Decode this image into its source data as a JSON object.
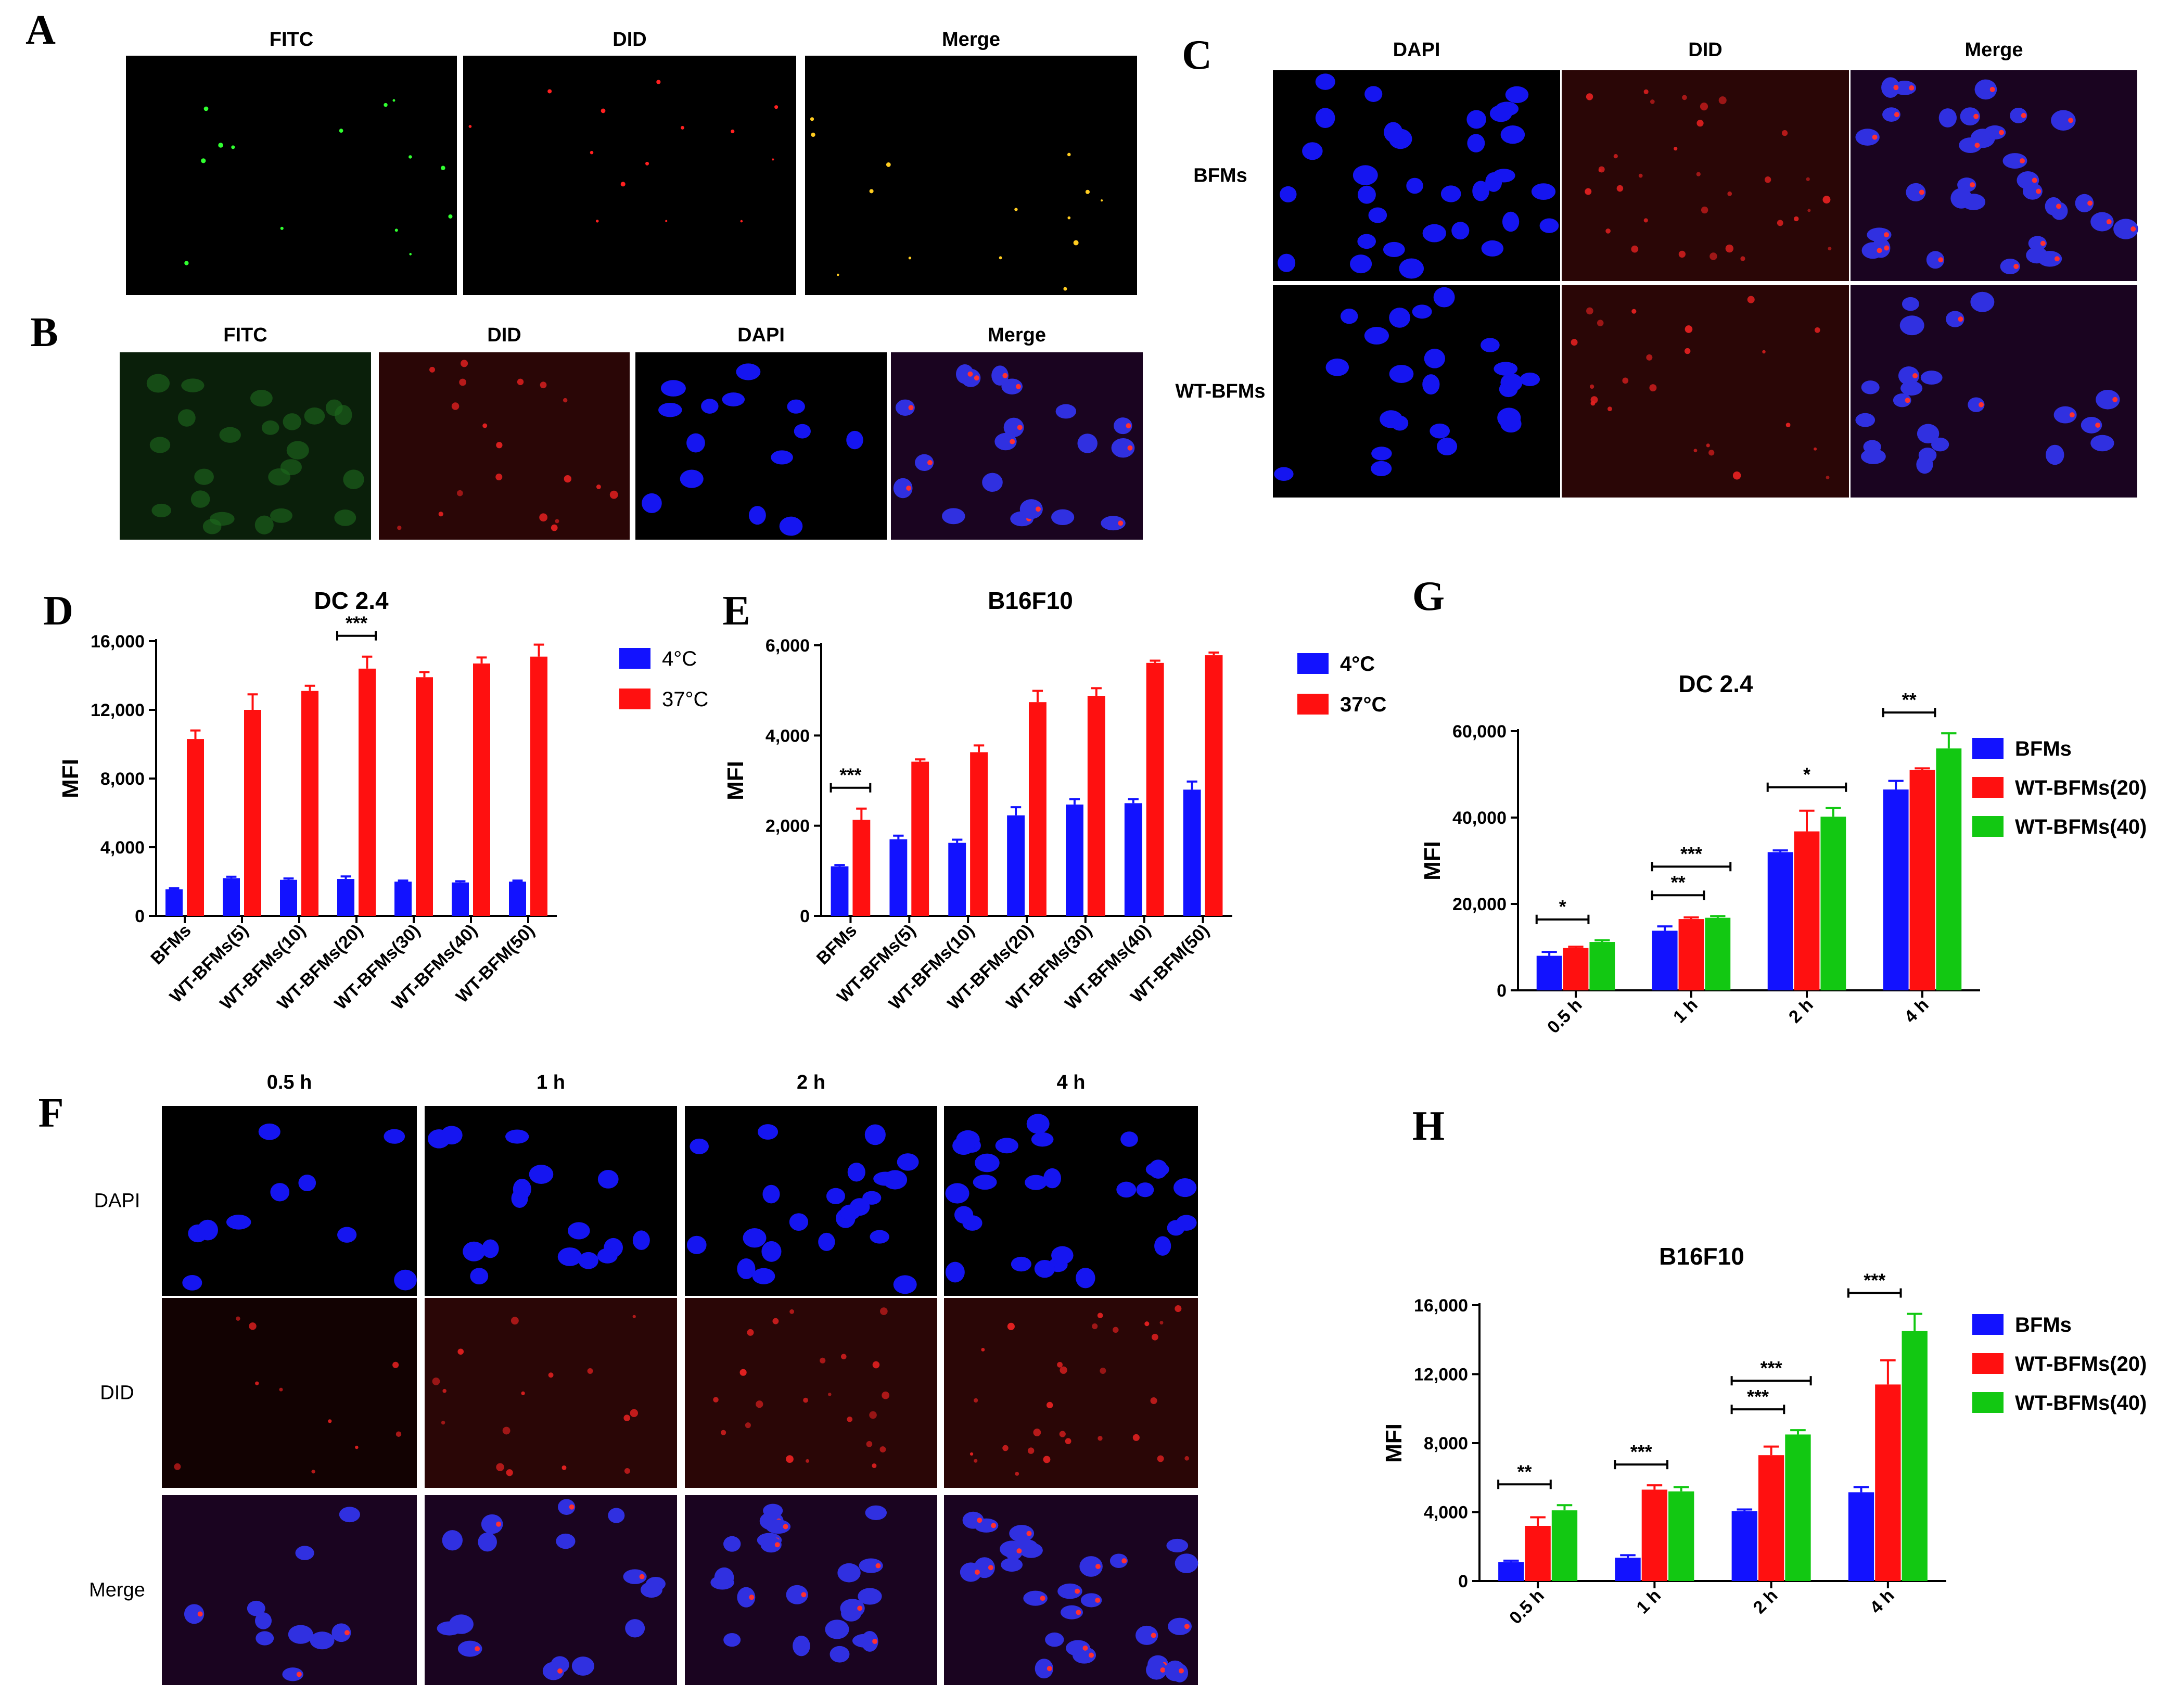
{
  "panel_letters": {
    "A": "A",
    "B": "B",
    "C": "C",
    "D": "D",
    "E": "E",
    "F": "F",
    "G": "G",
    "H": "H"
  },
  "panel_A": {
    "columns": [
      "FITC",
      "DID",
      "Merge"
    ]
  },
  "panel_B": {
    "columns": [
      "FITC",
      "DID",
      "DAPI",
      "Merge"
    ]
  },
  "panel_C": {
    "columns": [
      "DAPI",
      "DID",
      "Merge"
    ],
    "rows": [
      "BFMs",
      "WT-BFMs"
    ]
  },
  "panel_F": {
    "columns": [
      "0.5 h",
      "1 h",
      "2 h",
      "4 h"
    ],
    "rows": [
      "DAPI",
      "DID",
      "Merge"
    ]
  },
  "colors": {
    "blue": "#1212ff",
    "red": "#ff1010",
    "green": "#12c812",
    "dapi_bg": "#000000",
    "dapi_nuclei": "#1515f0",
    "did": "#d01010",
    "fitc": "#20c020"
  },
  "chart_data": [
    {
      "id": "D",
      "type": "bar",
      "title": "DC 2.4",
      "ylabel": "MFI",
      "ylim": [
        0,
        16000
      ],
      "yticks": [
        "0",
        "4,000",
        "8,000",
        "12,000",
        "16,000"
      ],
      "categories": [
        "BFMs",
        "WT-BFMs(5)",
        "WT-BFMs(10)",
        "WT-BFMs(20)",
        "WT-BFMs(30)",
        "WT-BFMs(40)",
        "WT-BFM(50)"
      ],
      "series": [
        {
          "name": "4°C",
          "values": [
            1550,
            2200,
            2100,
            2150,
            2000,
            1950,
            2000
          ],
          "errors": [
            60,
            80,
            80,
            150,
            60,
            70,
            60
          ]
        },
        {
          "name": "37°C",
          "values": [
            10300,
            12000,
            13100,
            14400,
            13900,
            14700,
            15100
          ],
          "errors": [
            500,
            900,
            300,
            700,
            300,
            350,
            700
          ]
        }
      ],
      "annotations": [
        {
          "text": "***",
          "between": "4°C vs 37°C",
          "category": "WT-BFMs(20)"
        }
      ],
      "legend": "right",
      "grid": false
    },
    {
      "id": "E",
      "type": "bar",
      "title": "B16F10",
      "ylabel": "MFI",
      "ylim": [
        0,
        6000
      ],
      "yticks": [
        "0",
        "2,000",
        "4,000",
        "6,000"
      ],
      "categories": [
        "BFMs",
        "WT-BFMs(5)",
        "WT-BFMs(10)",
        "WT-BFMs(20)",
        "WT-BFMs(30)",
        "WT-BFMs(40)",
        "WT-BFM(50)"
      ],
      "series": [
        {
          "name": "4°C",
          "values": [
            1100,
            1700,
            1620,
            2230,
            2470,
            2500,
            2800
          ],
          "errors": [
            30,
            80,
            70,
            180,
            120,
            90,
            180
          ]
        },
        {
          "name": "37°C",
          "values": [
            2130,
            3420,
            3630,
            4740,
            4880,
            5610,
            5780
          ],
          "errors": [
            250,
            50,
            150,
            250,
            170,
            50,
            60
          ]
        }
      ],
      "annotations": [
        {
          "text": "***",
          "between": "4°C vs 37°C",
          "category": "BFMs"
        }
      ],
      "legend": "right",
      "grid": false
    },
    {
      "id": "G",
      "type": "bar",
      "title": "DC 2.4",
      "ylabel": "MFI",
      "ylim": [
        0,
        60000
      ],
      "yticks": [
        "0",
        "20,000",
        "40,000",
        "60,000"
      ],
      "categories": [
        "0.5 h",
        "1 h",
        "2 h",
        "4 h"
      ],
      "series": [
        {
          "name": "BFMs",
          "values": [
            8000,
            13800,
            32000,
            46500
          ],
          "errors": [
            900,
            1000,
            400,
            2000
          ]
        },
        {
          "name": "WT-BFMs(20)",
          "values": [
            9800,
            16500,
            36800,
            51000
          ],
          "errors": [
            300,
            400,
            4800,
            400
          ]
        },
        {
          "name": "WT-BFMs(40)",
          "values": [
            11200,
            16800,
            40200,
            56000
          ],
          "errors": [
            400,
            400,
            2000,
            3500
          ]
        }
      ],
      "annotations": [
        {
          "text": "*",
          "category": "0.5 h",
          "between": "BFMs vs WT-BFMs(20)"
        },
        {
          "text": "**",
          "category": "1 h",
          "between": "BFMs vs WT-BFMs(20)"
        },
        {
          "text": "***",
          "category": "1 h",
          "between": "BFMs vs WT-BFMs(40)"
        },
        {
          "text": "*",
          "category": "2 h",
          "between": "BFMs vs WT-BFMs(40)"
        },
        {
          "text": "**",
          "category": "4 h",
          "between": "BFMs vs WT-BFMs(20)"
        }
      ],
      "legend": "right",
      "grid": false
    },
    {
      "id": "H",
      "type": "bar",
      "title": "B16F10",
      "ylabel": "MFI",
      "ylim": [
        0,
        16000
      ],
      "yticks": [
        "0",
        "4,000",
        "8,000",
        "12,000",
        "16,000"
      ],
      "categories": [
        "0.5 h",
        "1 h",
        "2 h",
        "4 h"
      ],
      "series": [
        {
          "name": "BFMs",
          "values": [
            1100,
            1350,
            4050,
            5150
          ],
          "errors": [
            80,
            150,
            100,
            300
          ]
        },
        {
          "name": "WT-BFMs(20)",
          "values": [
            3200,
            5300,
            7300,
            11400
          ],
          "errors": [
            500,
            250,
            500,
            1400
          ]
        },
        {
          "name": "WT-BFMs(40)",
          "values": [
            4100,
            5200,
            8500,
            14500
          ],
          "errors": [
            300,
            250,
            250,
            1000
          ]
        }
      ],
      "annotations": [
        {
          "text": "**",
          "category": "0.5 h",
          "between": "BFMs vs WT-BFMs(20)"
        },
        {
          "text": "***",
          "category": "1 h",
          "between": "BFMs vs WT-BFMs(20)"
        },
        {
          "text": "***",
          "category": "2 h",
          "between": "BFMs vs WT-BFMs(20)"
        },
        {
          "text": "***",
          "category": "2 h",
          "between": "BFMs vs WT-BFMs(40)"
        },
        {
          "text": "***",
          "category": "4 h",
          "between": "BFMs vs WT-BFMs(20)"
        }
      ],
      "legend": "right",
      "grid": false
    }
  ]
}
